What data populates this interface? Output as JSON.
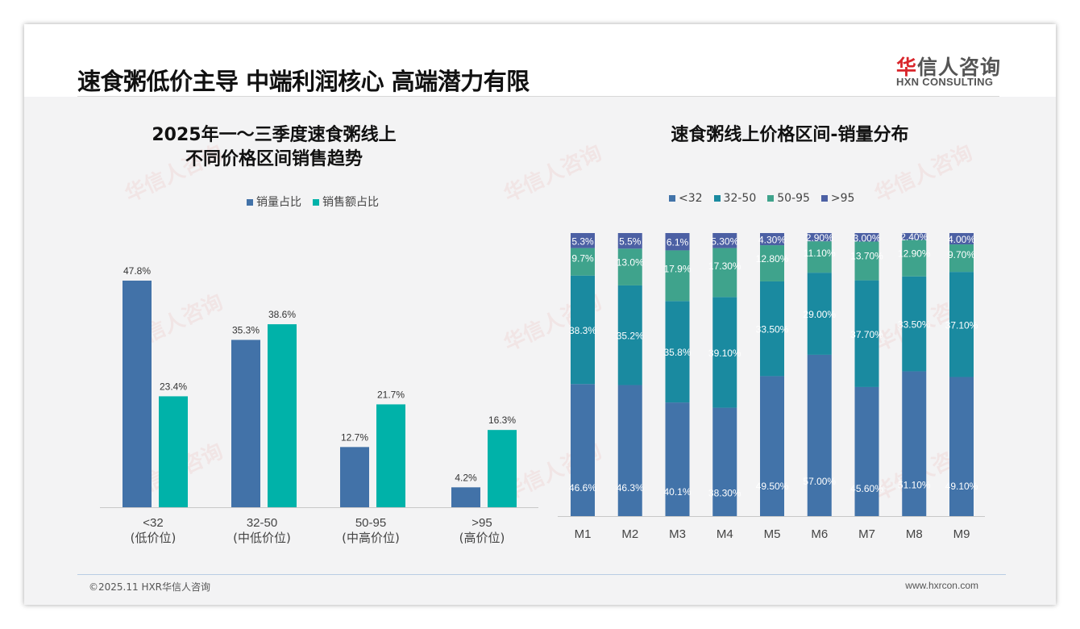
{
  "header": {
    "title": "速食粥低价主导 中端利润核心 高端潜力有限",
    "logo_cn_red": "华",
    "logo_cn": "信人咨询",
    "logo_en": "HXN CONSULTING"
  },
  "footer": {
    "copyright": "©2025.11 HXR华信人咨询",
    "website": "www.hxrcon.com"
  },
  "colors": {
    "volume": "#4272a8",
    "amount": "#00b2a9",
    "lt32": "#4273a9",
    "r32_50": "#1a8aa0",
    "r50_95": "#3fa38c",
    "gt95": "#4c60a4"
  },
  "chart_data": [
    {
      "type": "bar",
      "title_line1": "2025年一～三季度速食粥线上",
      "title_line2": "不同价格区间销售趋势",
      "categories": [
        "<32",
        "32-50",
        "50-95",
        ">95"
      ],
      "category_sublabels": [
        "(低价位)",
        "(中低价位)",
        "(中高价位)",
        "(高价位)"
      ],
      "series": [
        {
          "name": "销量占比",
          "values": [
            47.8,
            35.3,
            12.7,
            4.2
          ],
          "labels": [
            "47.8%",
            "35.3%",
            "12.7%",
            "4.2%"
          ]
        },
        {
          "name": "销售额占比",
          "values": [
            23.4,
            38.6,
            21.7,
            16.3
          ],
          "labels": [
            "23.4%",
            "38.6%",
            "21.7%",
            "16.3%"
          ]
        }
      ],
      "ylim": [
        0,
        50
      ],
      "legend": "top-center",
      "grid": false
    },
    {
      "type": "bar",
      "stacked": true,
      "title": "速食粥线上价格区间-销量分布",
      "categories": [
        "M1",
        "M2",
        "M3",
        "M4",
        "M5",
        "M6",
        "M7",
        "M8",
        "M9"
      ],
      "series": [
        {
          "name": "<32",
          "values": [
            46.6,
            46.3,
            40.1,
            38.3,
            49.5,
            57.0,
            45.6,
            51.1,
            49.1
          ],
          "labels": [
            "46.6%",
            "46.3%",
            "40.1%",
            "38.30%",
            "49.50%",
            "57.00%",
            "45.60%",
            "51.10%",
            "49.10%"
          ]
        },
        {
          "name": "32-50",
          "values": [
            38.3,
            35.2,
            35.8,
            39.1,
            33.5,
            29.0,
            37.7,
            33.5,
            37.1
          ],
          "labels": [
            "38.3%",
            "35.2%",
            "35.8%",
            "39.10%",
            "33.50%",
            "29.00%",
            "37.70%",
            "33.50%",
            "37.10%"
          ]
        },
        {
          "name": "50-95",
          "values": [
            9.7,
            13.0,
            17.9,
            17.3,
            12.8,
            11.1,
            13.7,
            12.9,
            9.7
          ],
          "labels": [
            "9.7%",
            "13.0%",
            "17.9%",
            "17.30%",
            "12.80%",
            "11.10%",
            "13.70%",
            "12.90%",
            "9.70%"
          ]
        },
        {
          "name": ">95",
          "values": [
            5.3,
            5.5,
            6.1,
            5.3,
            4.3,
            2.9,
            3.0,
            2.4,
            4.0
          ],
          "labels": [
            "5.3%",
            "5.5%",
            "6.1%",
            "5.30%",
            "4.30%",
            "2.90%",
            "3.00%",
            "2.40%",
            "4.00%"
          ]
        }
      ],
      "ylim": [
        0,
        100
      ],
      "legend": "top-center",
      "grid": false
    }
  ]
}
